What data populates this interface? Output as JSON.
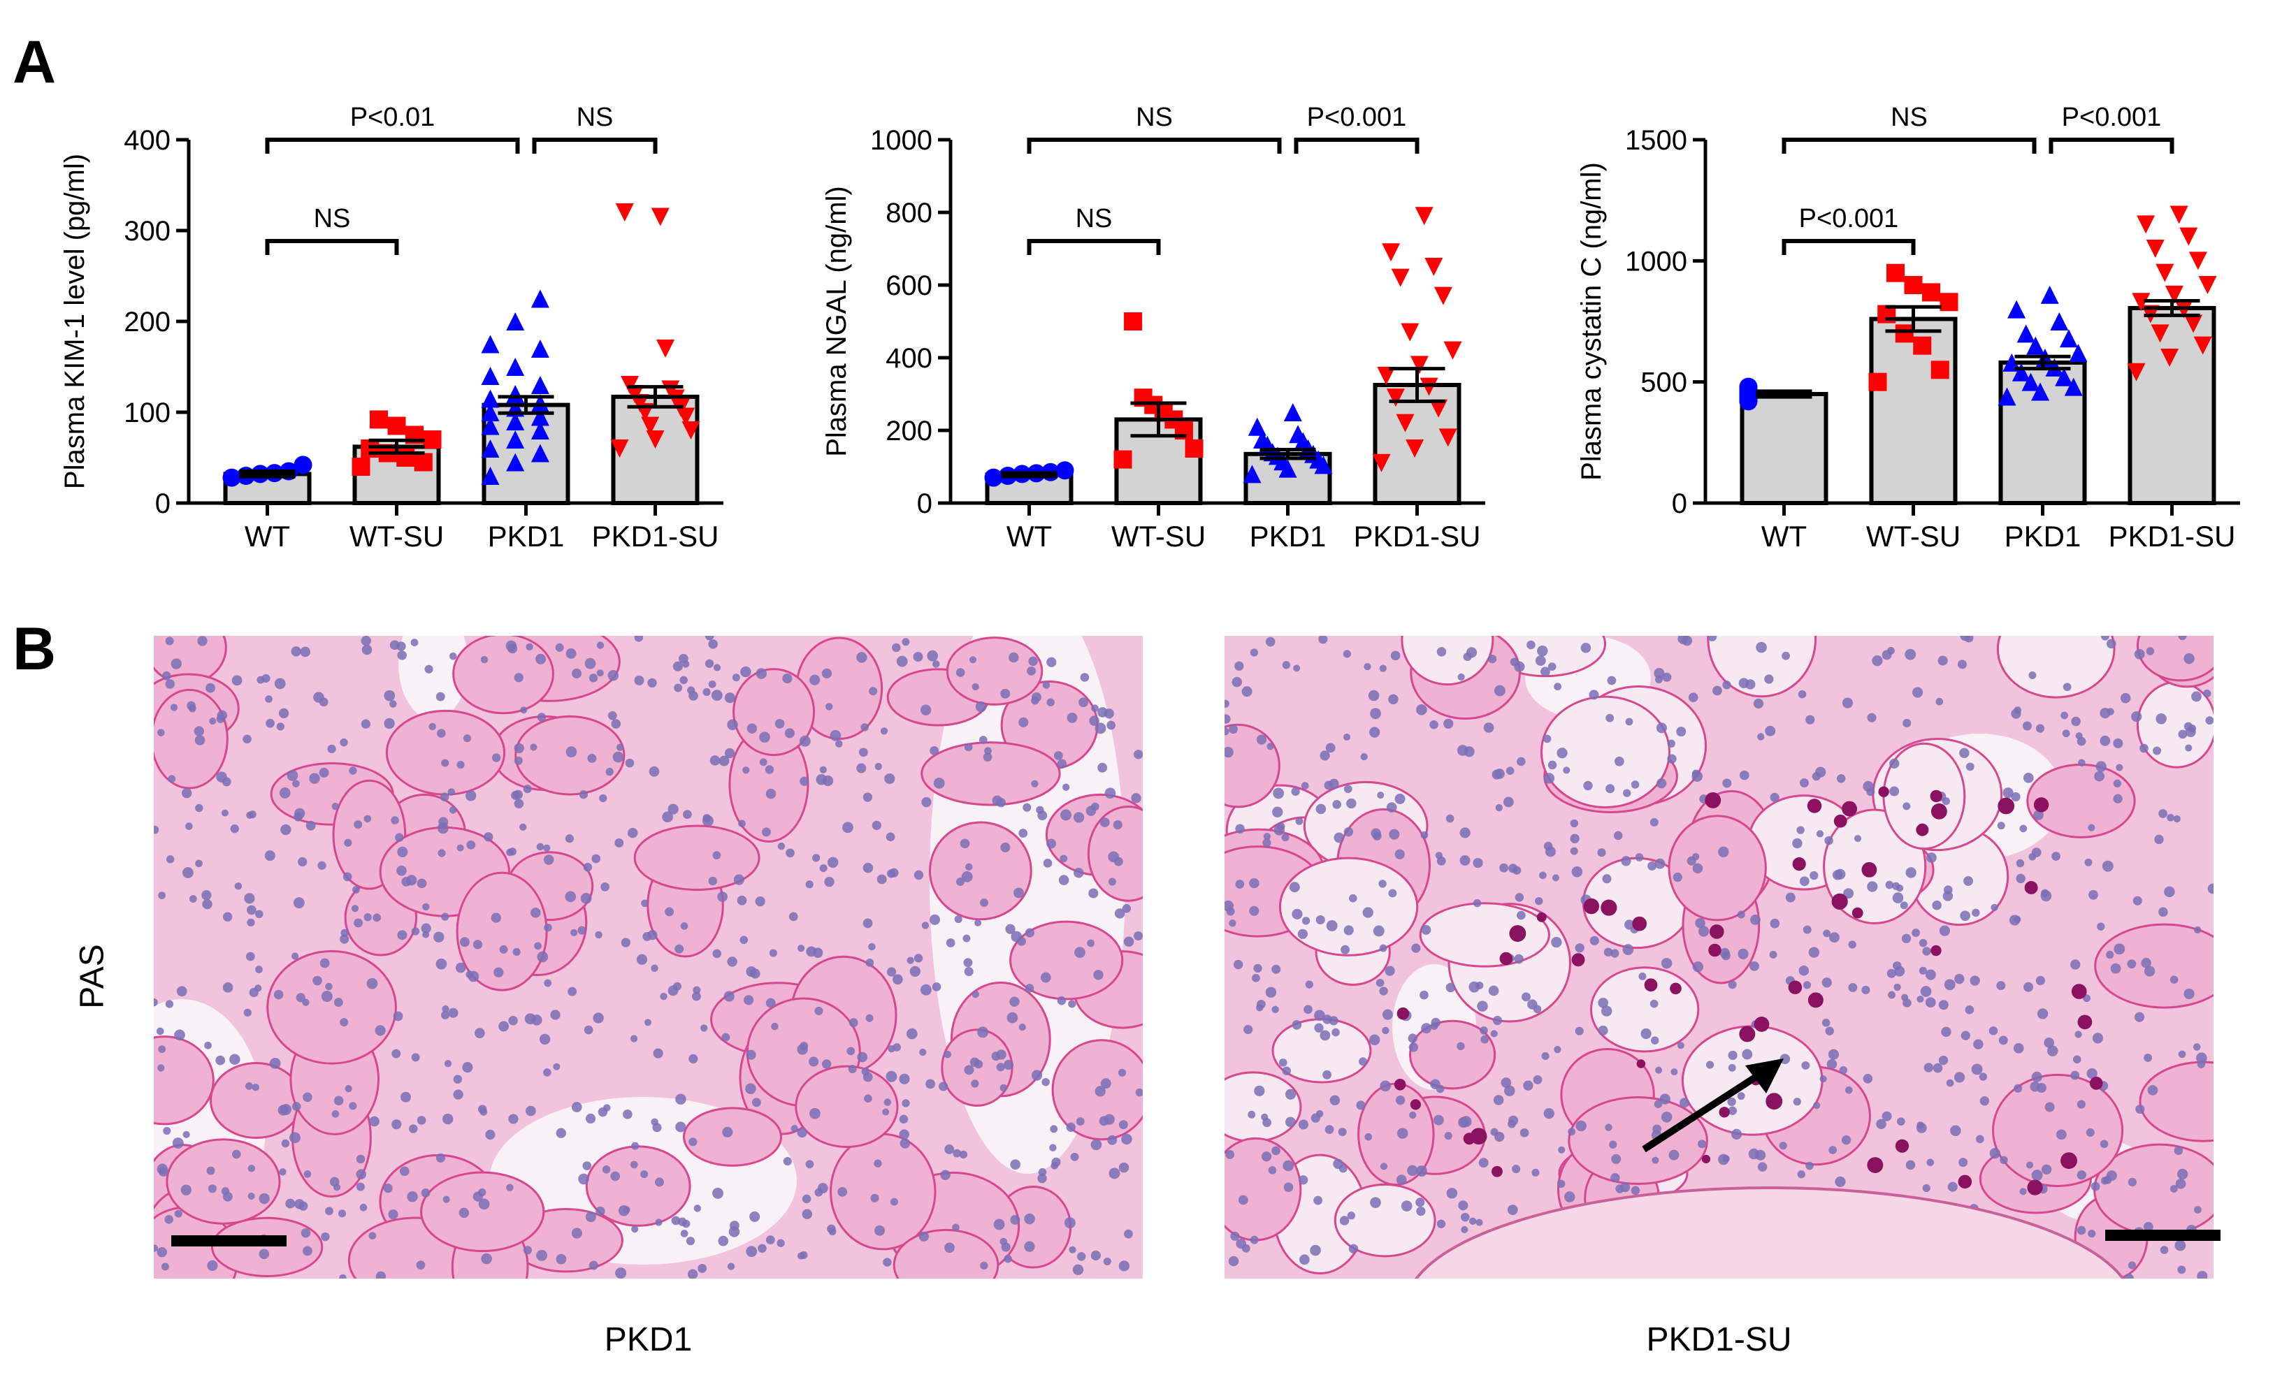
{
  "panel_letters": {
    "a": "A",
    "b": "B"
  },
  "colors": {
    "WT": "#0000ff",
    "WT-SU": "#ff0000",
    "PKD1": "#0000ff",
    "PKD1-SU": "#ff0000",
    "bar_fill": "#d3d3d3"
  },
  "chart_data": [
    {
      "type": "bar",
      "title": "",
      "ylabel": "Plasma KIM-1 level (pg/ml)",
      "xlabel": "",
      "categories": [
        "WT",
        "WT-SU",
        "PKD1",
        "PKD1-SU"
      ],
      "ylim": [
        0,
        400
      ],
      "yticks": [
        0,
        100,
        200,
        300,
        400
      ],
      "means": [
        32,
        62,
        108,
        117
      ],
      "sem": [
        3,
        7,
        9,
        11
      ],
      "markers": [
        "circle",
        "square",
        "triangle-up",
        "triangle-down"
      ],
      "points": [
        [
          28,
          30,
          32,
          33,
          35,
          42
        ],
        [
          40,
          45,
          50,
          55,
          60,
          70,
          75,
          85,
          92
        ],
        [
          30,
          45,
          55,
          60,
          70,
          80,
          85,
          90,
          95,
          100,
          105,
          110,
          115,
          120,
          130,
          140,
          150,
          170,
          175,
          200,
          225
        ],
        [
          60,
          70,
          80,
          85,
          95,
          100,
          105,
          110,
          115,
          120,
          125,
          130,
          170,
          320,
          315
        ]
      ],
      "comparisons": [
        {
          "from": 0,
          "to": 1,
          "label": "NS",
          "level": 1
        },
        {
          "from": 0,
          "to": 2,
          "label": "P<0.01",
          "level": 2
        },
        {
          "from": 2,
          "to": 3,
          "label": "NS",
          "level": 2
        }
      ]
    },
    {
      "type": "bar",
      "title": "",
      "ylabel": "Plasma NGAL (ng/ml)",
      "xlabel": "",
      "categories": [
        "WT",
        "WT-SU",
        "PKD1",
        "PKD1-SU"
      ],
      "ylim": [
        0,
        1000
      ],
      "yticks": [
        0,
        200,
        400,
        600,
        800,
        1000
      ],
      "means": [
        78,
        230,
        135,
        325
      ],
      "sem": [
        5,
        45,
        12,
        45
      ],
      "markers": [
        "circle",
        "square",
        "triangle-up",
        "triangle-down"
      ],
      "points": [
        [
          70,
          75,
          80,
          82,
          85,
          90
        ],
        [
          120,
          150,
          200,
          230,
          250,
          270,
          290,
          500
        ],
        [
          80,
          95,
          105,
          115,
          120,
          130,
          135,
          140,
          150,
          160,
          170,
          175,
          190,
          210,
          250
        ],
        [
          110,
          150,
          180,
          220,
          260,
          290,
          320,
          350,
          380,
          420,
          470,
          570,
          620,
          650,
          690,
          790
        ]
      ],
      "comparisons": [
        {
          "from": 0,
          "to": 1,
          "label": "NS",
          "level": 1
        },
        {
          "from": 0,
          "to": 2,
          "label": "NS",
          "level": 2
        },
        {
          "from": 2,
          "to": 3,
          "label": "P<0.001",
          "level": 2
        }
      ]
    },
    {
      "type": "bar",
      "title": "",
      "ylabel": "Plasma cystatin C (ng/ml)",
      "xlabel": "",
      "categories": [
        "WT",
        "WT-SU",
        "PKD1",
        "PKD1-SU"
      ],
      "ylim": [
        0,
        1500
      ],
      "yticks": [
        0,
        500,
        1000,
        1500
      ],
      "means": [
        450,
        760,
        580,
        805
      ],
      "sem": [
        12,
        50,
        25,
        30
      ],
      "markers": [
        "circle",
        "square",
        "triangle-up",
        "triangle-down"
      ],
      "points": [
        [
          420,
          430,
          440,
          450,
          460,
          470,
          480
        ],
        [
          500,
          550,
          650,
          700,
          780,
          830,
          870,
          900,
          950
        ],
        [
          440,
          460,
          480,
          500,
          520,
          540,
          560,
          580,
          600,
          620,
          650,
          680,
          700,
          750,
          800,
          860
        ],
        [
          540,
          600,
          650,
          700,
          740,
          780,
          800,
          830,
          860,
          900,
          950,
          1000,
          1050,
          1100,
          1150,
          1190
        ]
      ],
      "comparisons": [
        {
          "from": 0,
          "to": 1,
          "label": "P<0.001",
          "level": 1
        },
        {
          "from": 0,
          "to": 2,
          "label": "NS",
          "level": 2
        },
        {
          "from": 2,
          "to": 3,
          "label": "P<0.001",
          "level": 2
        }
      ]
    }
  ],
  "histology": {
    "stain_label": "PAS",
    "left_label": "PKD1",
    "right_label": "PKD1-SU"
  }
}
